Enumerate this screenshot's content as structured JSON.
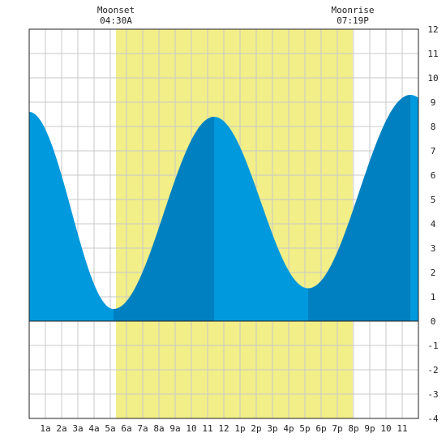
{
  "chart_data": {
    "type": "area",
    "title": "",
    "xlabel": "",
    "ylabel": "",
    "x_range": [
      0,
      24
    ],
    "ylim": [
      -4,
      12
    ],
    "y_ticks": [
      -4,
      -3,
      -2,
      -1,
      0,
      1,
      2,
      3,
      4,
      5,
      6,
      7,
      8,
      9,
      10,
      11,
      12
    ],
    "x_ticks": [
      {
        "x": 1,
        "label": "1a"
      },
      {
        "x": 2,
        "label": "2a"
      },
      {
        "x": 3,
        "label": "3a"
      },
      {
        "x": 4,
        "label": "4a"
      },
      {
        "x": 5,
        "label": "5a"
      },
      {
        "x": 6,
        "label": "6a"
      },
      {
        "x": 7,
        "label": "7a"
      },
      {
        "x": 8,
        "label": "8a"
      },
      {
        "x": 9,
        "label": "9a"
      },
      {
        "x": 10,
        "label": "10"
      },
      {
        "x": 11,
        "label": "11"
      },
      {
        "x": 12,
        "label": "12"
      },
      {
        "x": 13,
        "label": "1p"
      },
      {
        "x": 14,
        "label": "2p"
      },
      {
        "x": 15,
        "label": "3p"
      },
      {
        "x": 16,
        "label": "4p"
      },
      {
        "x": 17,
        "label": "5p"
      },
      {
        "x": 18,
        "label": "6p"
      },
      {
        "x": 19,
        "label": "7p"
      },
      {
        "x": 20,
        "label": "8p"
      },
      {
        "x": 21,
        "label": "9p"
      },
      {
        "x": 22,
        "label": "10"
      },
      {
        "x": 23,
        "label": "11"
      }
    ],
    "grid": true,
    "tide_extremes": [
      {
        "x": 0.0,
        "y": 8.6
      },
      {
        "x": 5.2,
        "y": 0.5
      },
      {
        "x": 11.4,
        "y": 8.4
      },
      {
        "x": 17.2,
        "y": 1.35
      },
      {
        "x": 23.5,
        "y": 9.3
      }
    ],
    "daylight_band": {
      "start": 5.35,
      "end": 19.95
    },
    "moon_events": [
      {
        "name": "Moonset",
        "time": "04:30A",
        "x": 5.35
      },
      {
        "name": "Moonrise",
        "time": "07:19P",
        "x": 19.95
      }
    ],
    "colors": {
      "rising_fill": "#0080c0",
      "falling_fill": "#0099dd",
      "daylight": "#f2ee88",
      "grid": "#c8c8c8",
      "border": "#222222"
    }
  }
}
